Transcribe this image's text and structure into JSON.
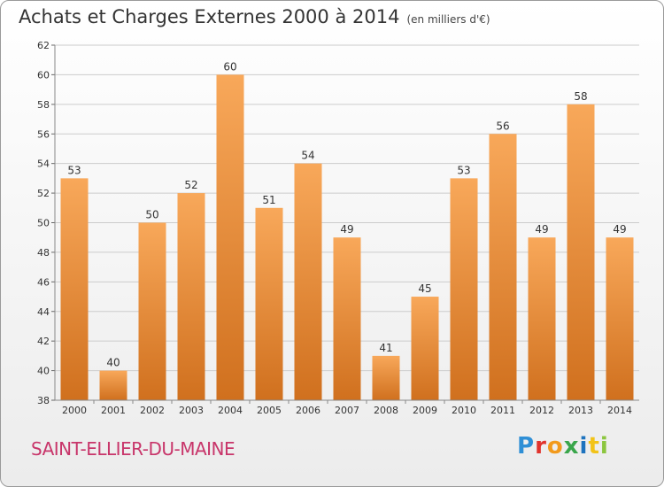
{
  "header": {
    "title": "Achats et Charges Externes 2000 à 2014",
    "subtitle": "(en milliers d'€)"
  },
  "footer": {
    "commune": "SAINT-ELLIER-DU-MAINE",
    "logo": "Proxiti"
  },
  "colors": {
    "bar_top": "#f8a85a",
    "bar_bottom": "#d0701e",
    "grid": "#cccccc"
  },
  "chart_data": {
    "type": "bar",
    "categories": [
      "2000",
      "2001",
      "2002",
      "2003",
      "2004",
      "2005",
      "2006",
      "2007",
      "2008",
      "2009",
      "2010",
      "2011",
      "2012",
      "2013",
      "2014"
    ],
    "values": [
      53,
      40,
      50,
      52,
      60,
      51,
      54,
      49,
      41,
      45,
      53,
      56,
      49,
      58,
      49
    ],
    "title": "Achats et Charges Externes 2000 à 2014",
    "ylim": [
      38,
      62
    ],
    "yticks": [
      38,
      40,
      42,
      44,
      46,
      48,
      50,
      52,
      54,
      56,
      58,
      60,
      62
    ],
    "grid": true,
    "data_labels": true
  }
}
